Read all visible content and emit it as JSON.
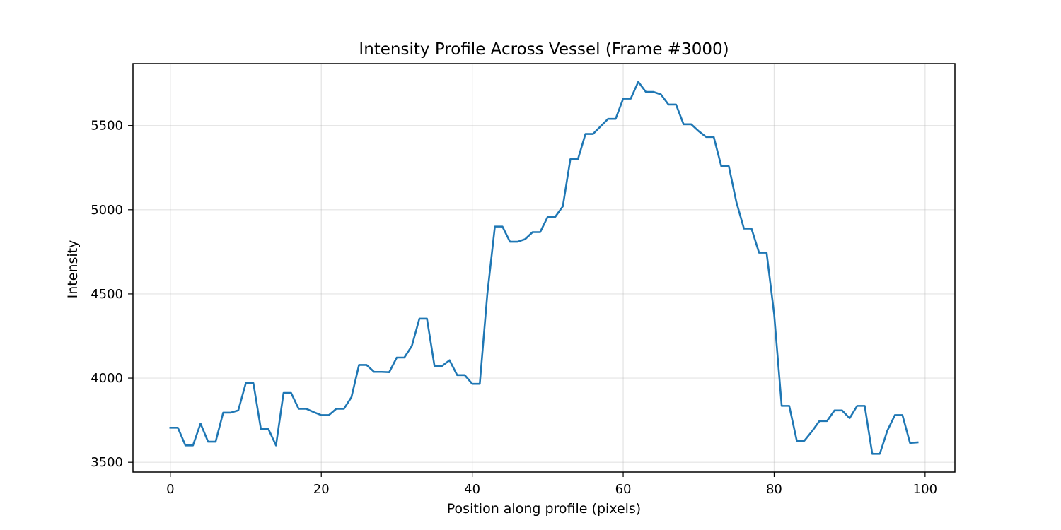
{
  "chart_data": {
    "type": "line",
    "title": "Intensity Profile Across Vessel (Frame #3000)",
    "xlabel": "Position along profile (pixels)",
    "ylabel": "Intensity",
    "xlim": [
      -4.95,
      103.95
    ],
    "ylim": [
      3442,
      5868
    ],
    "xticks": [
      0,
      20,
      40,
      60,
      80,
      100
    ],
    "yticks": [
      3500,
      4000,
      4500,
      5000,
      5500
    ],
    "grid": true,
    "series": [
      {
        "color": "#1f77b4",
        "x": [
          0,
          1,
          2,
          3,
          4,
          5,
          6,
          7,
          8,
          9,
          10,
          11,
          12,
          13,
          14,
          15,
          16,
          17,
          18,
          19,
          20,
          21,
          22,
          23,
          24,
          25,
          26,
          27,
          28,
          29,
          30,
          31,
          32,
          33,
          34,
          35,
          36,
          37,
          38,
          39,
          40,
          41,
          42,
          43,
          44,
          45,
          46,
          47,
          48,
          49,
          50,
          51,
          52,
          53,
          54,
          55,
          56,
          57,
          58,
          59,
          60,
          61,
          62,
          63,
          64,
          65,
          66,
          67,
          68,
          69,
          70,
          71,
          72,
          73,
          74,
          75,
          76,
          77,
          78,
          79,
          80,
          81,
          82,
          83,
          84,
          85,
          86,
          87,
          88,
          89,
          90,
          91,
          92,
          93,
          94,
          95,
          96,
          97,
          98,
          99
        ],
        "y": [
          3705,
          3705,
          3600,
          3600,
          3730,
          3622,
          3622,
          3795,
          3795,
          3808,
          3970,
          3970,
          3697,
          3697,
          3600,
          3912,
          3912,
          3818,
          3818,
          3798,
          3780,
          3780,
          3818,
          3818,
          3887,
          4078,
          4078,
          4037,
          4037,
          4035,
          4122,
          4122,
          4191,
          4353,
          4353,
          4072,
          4072,
          4106,
          4018,
          4018,
          3966,
          3966,
          4500,
          4900,
          4900,
          4810,
          4810,
          4825,
          4867,
          4867,
          4958,
          4958,
          5020,
          5300,
          5300,
          5450,
          5450,
          5495,
          5540,
          5540,
          5660,
          5660,
          5760,
          5700,
          5700,
          5685,
          5625,
          5625,
          5508,
          5508,
          5467,
          5432,
          5432,
          5258,
          5258,
          5045,
          4888,
          4888,
          4745,
          4745,
          4380,
          3835,
          3835,
          3628,
          3628,
          3683,
          3745,
          3745,
          3808,
          3808,
          3762,
          3835,
          3835,
          3550,
          3550,
          3688,
          3780,
          3780,
          3615,
          3618
        ]
      }
    ]
  }
}
